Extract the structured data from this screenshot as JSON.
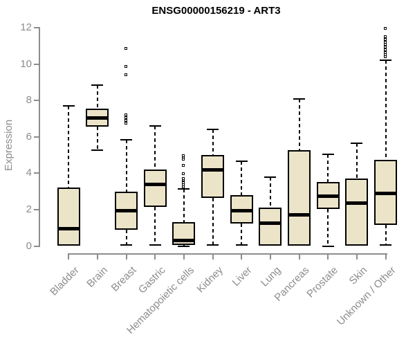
{
  "chart_data": {
    "type": "boxplot",
    "title": "ENSG00000156219 - ART3",
    "xlabel": "",
    "ylabel": "Expression",
    "ylim": [
      0,
      12
    ],
    "y_ticks": [
      0,
      2,
      4,
      6,
      8,
      10,
      12
    ],
    "grid": false,
    "categories": [
      "Bladder",
      "Brain",
      "Breast",
      "Gastric",
      "Hematopoietic cells",
      "Kidney",
      "Liver",
      "Lung",
      "Pancreas",
      "Prostate",
      "Skin",
      "Unknown / Other"
    ],
    "boxes": [
      {
        "label": "Bladder",
        "whisker_low": 0,
        "q1": 0,
        "median": 0.95,
        "q3": 3.2,
        "whisker_high": 7.7,
        "outliers": []
      },
      {
        "label": "Brain",
        "whisker_low": 5.25,
        "q1": 6.55,
        "median": 7.05,
        "q3": 7.55,
        "whisker_high": 8.85,
        "outliers": []
      },
      {
        "label": "Breast",
        "whisker_low": 0.05,
        "q1": 0.9,
        "median": 1.95,
        "q3": 3.0,
        "whisker_high": 5.85,
        "outliers": [
          6.75,
          6.9,
          7.05,
          7.2,
          9.4,
          9.85,
          10.85
        ]
      },
      {
        "label": "Gastric",
        "whisker_low": 0.05,
        "q1": 2.15,
        "median": 3.4,
        "q3": 4.2,
        "whisker_high": 6.6,
        "outliers": []
      },
      {
        "label": "Hematopoietic cells",
        "whisker_low": 0,
        "q1": 0.05,
        "median": 0.3,
        "q3": 1.3,
        "whisker_high": 3.15,
        "outliers": [
          3.25,
          3.35,
          3.45,
          3.6,
          3.7,
          3.95,
          4.4,
          4.75,
          4.85,
          4.95
        ]
      },
      {
        "label": "Kidney",
        "whisker_low": 0.05,
        "q1": 2.65,
        "median": 4.2,
        "q3": 5.0,
        "whisker_high": 6.4,
        "outliers": []
      },
      {
        "label": "Liver",
        "whisker_low": 0.05,
        "q1": 1.25,
        "median": 1.95,
        "q3": 2.8,
        "whisker_high": 4.65,
        "outliers": []
      },
      {
        "label": "Lung",
        "whisker_low": 0,
        "q1": 0,
        "median": 1.25,
        "q3": 2.1,
        "whisker_high": 3.8,
        "outliers": []
      },
      {
        "label": "Pancreas",
        "whisker_low": 0,
        "q1": 0,
        "median": 1.7,
        "q3": 5.25,
        "whisker_high": 8.1,
        "outliers": []
      },
      {
        "label": "Prostate",
        "whisker_low": 0,
        "q1": 2.05,
        "median": 2.75,
        "q3": 3.5,
        "whisker_high": 5.05,
        "outliers": []
      },
      {
        "label": "Skin",
        "whisker_low": 0,
        "q1": 0,
        "median": 2.35,
        "q3": 3.7,
        "whisker_high": 5.65,
        "outliers": []
      },
      {
        "label": "Unknown / Other",
        "whisker_low": 0.05,
        "q1": 1.15,
        "median": 2.9,
        "q3": 4.75,
        "whisker_high": 10.2,
        "outliers": [
          10.4,
          10.5,
          10.6,
          10.75,
          10.9,
          11.05,
          11.2,
          11.35,
          11.5,
          11.95
        ]
      }
    ],
    "colors": {
      "box_fill": "#ECE4C9",
      "box_border": "#000000",
      "median": "#000000",
      "whisker": "#000000",
      "axis": "#8C8C8C",
      "tick_label": "#8C8C8C",
      "title": "#000000",
      "background": "#FFFFFF"
    }
  }
}
